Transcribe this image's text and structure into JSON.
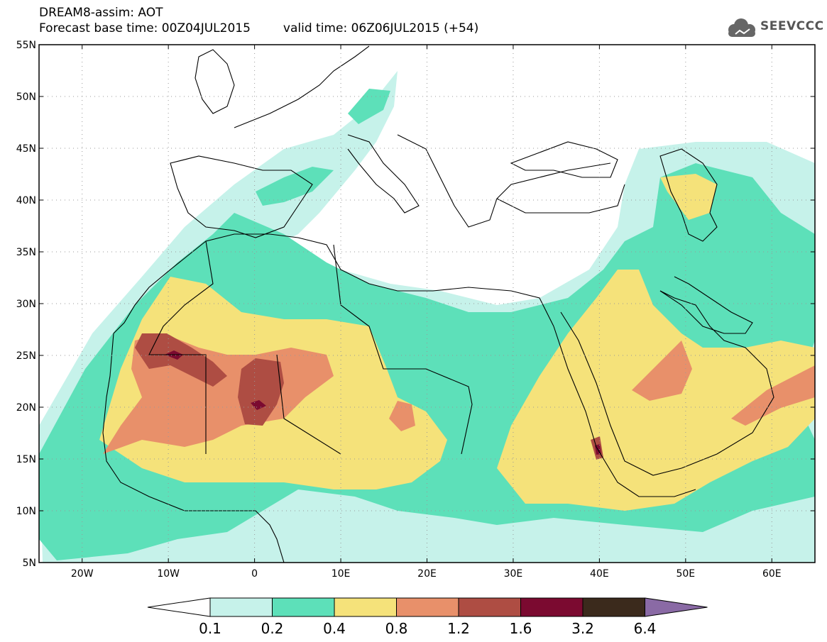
{
  "header": {
    "title": "DREAM8-assim: AOT",
    "base_time": "Forecast base time: 00Z04JUL2015",
    "valid_time": "valid time: 06Z06JUL2015 (+54)",
    "logo_text": "SEEVCCC"
  },
  "map": {
    "lon_range": [
      -25,
      65
    ],
    "lat_range": [
      5,
      55
    ],
    "lon_ticks": [
      {
        "v": -20,
        "label": "20W"
      },
      {
        "v": -10,
        "label": "10W"
      },
      {
        "v": 0,
        "label": "0"
      },
      {
        "v": 10,
        "label": "10E"
      },
      {
        "v": 20,
        "label": "20E"
      },
      {
        "v": 30,
        "label": "30E"
      },
      {
        "v": 40,
        "label": "40E"
      },
      {
        "v": 50,
        "label": "50E"
      },
      {
        "v": 60,
        "label": "60E"
      }
    ],
    "lat_ticks": [
      {
        "v": 55,
        "label": "55N"
      },
      {
        "v": 50,
        "label": "50N"
      },
      {
        "v": 45,
        "label": "45N"
      },
      {
        "v": 40,
        "label": "40N"
      },
      {
        "v": 35,
        "label": "35N"
      },
      {
        "v": 30,
        "label": "30N"
      },
      {
        "v": 25,
        "label": "25N"
      },
      {
        "v": 20,
        "label": "20N"
      },
      {
        "v": 15,
        "label": "15N"
      },
      {
        "v": 10,
        "label": "10N"
      },
      {
        "v": 5,
        "label": "5N"
      }
    ]
  },
  "colorbar": {
    "levels": [
      "0.1",
      "0.2",
      "0.4",
      "0.8",
      "1.2",
      "1.6",
      "3.2",
      "6.4"
    ],
    "colors": [
      "#c6f2ea",
      "#5de0b9",
      "#f5e27a",
      "#e8906a",
      "#ae4d43",
      "#7b0a30",
      "#3b2a1c",
      "#8a6aa5"
    ],
    "under_color": "#ffffff"
  }
}
